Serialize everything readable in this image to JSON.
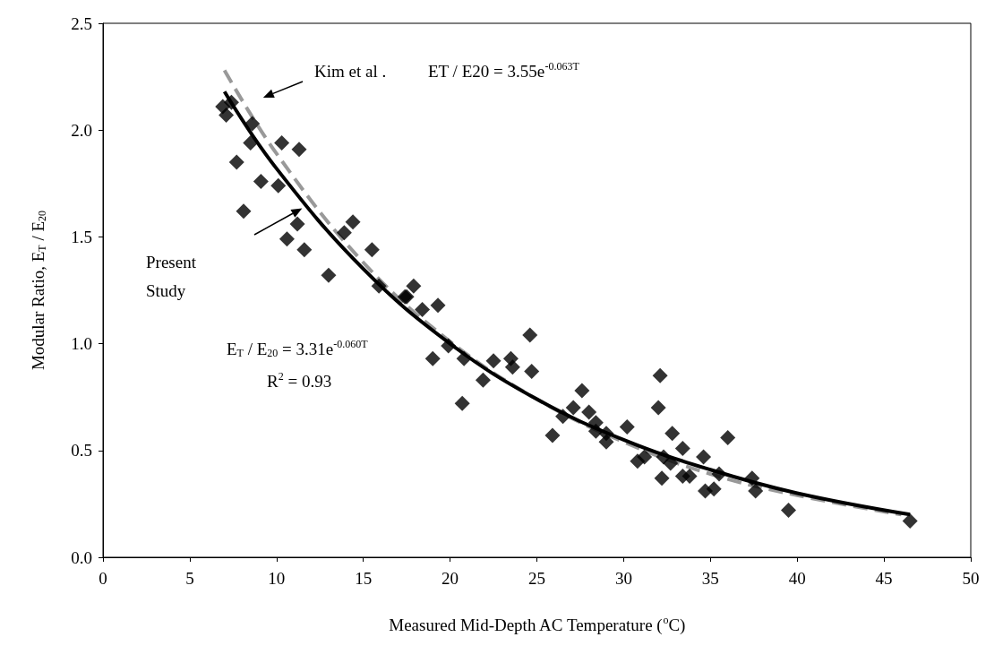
{
  "chart_data": {
    "type": "scatter",
    "xlabel": "Measured Mid-Depth AC Temperature ($^{o}$C)",
    "ylabel": "Modular Ratio, E$_{T}$ / E$_{20}$",
    "xlim": [
      0,
      50
    ],
    "xticks": [
      0,
      5,
      10,
      15,
      20,
      25,
      30,
      35,
      40,
      45,
      50
    ],
    "ylim": [
      0,
      2.5
    ],
    "yticks": [
      {
        "value": 0,
        "label": "0.0"
      },
      {
        "value": 0.5,
        "label": "0.5"
      },
      {
        "value": 1,
        "label": "1.0"
      },
      {
        "value": 1.5,
        "label": "1.5"
      },
      {
        "value": 2,
        "label": "2.0"
      },
      {
        "value": 2.5,
        "label": "2.5"
      }
    ],
    "marker": "diamond",
    "series": [
      {
        "color": "#000000",
        "x": [
          6.9,
          7.1,
          7.4,
          8.6,
          8.5,
          7.7,
          10.3,
          11.3,
          9.1,
          10.1,
          8.1,
          11.2,
          10.6,
          11.6,
          13.0,
          14.4,
          13.9,
          15.5,
          15.9,
          17.5,
          17.9,
          17.4,
          18.4,
          19.3,
          19.9,
          19.0,
          20.8,
          20.7,
          21.9,
          22.5,
          23.5,
          23.6,
          24.6,
          24.7,
          25.9,
          26.5,
          27.1,
          27.6,
          28.0,
          28.4,
          28.4,
          29.0,
          29.0,
          30.2,
          30.8,
          31.2,
          32.1,
          32.0,
          32.3,
          32.2,
          32.8,
          32.7,
          33.4,
          33.4,
          33.8,
          34.6,
          34.7,
          35.2,
          36.0,
          35.5,
          37.4,
          37.6,
          39.5,
          46.5
        ],
        "values": [
          2.11,
          2.07,
          2.13,
          2.03,
          1.94,
          1.85,
          1.94,
          1.91,
          1.76,
          1.74,
          1.62,
          1.56,
          1.49,
          1.44,
          1.32,
          1.57,
          1.52,
          1.44,
          1.27,
          1.22,
          1.27,
          1.22,
          1.16,
          1.18,
          0.99,
          0.93,
          0.93,
          0.72,
          0.83,
          0.92,
          0.93,
          0.89,
          1.04,
          0.87,
          0.57,
          0.66,
          0.7,
          0.78,
          0.68,
          0.63,
          0.59,
          0.54,
          0.58,
          0.61,
          0.45,
          0.47,
          0.85,
          0.7,
          0.47,
          0.37,
          0.58,
          0.44,
          0.51,
          0.38,
          0.38,
          0.47,
          0.31,
          0.32,
          0.56,
          0.39,
          0.37,
          0.31,
          0.22,
          0.17
        ]
      },
      {
        "type": "line",
        "color": "#000000",
        "line_style": "solid",
        "marker": "none",
        "x": [
          7,
          10,
          15,
          20,
          25,
          30,
          35,
          40,
          46.5
        ],
        "values": [
          2.18,
          1.82,
          1.35,
          1.0,
          0.74,
          0.55,
          0.41,
          0.3,
          0.2
        ]
      },
      {
        "type": "line",
        "color": "#999999",
        "line_style": "dashed",
        "marker": "none",
        "x": [
          7,
          10,
          15,
          20,
          25,
          30,
          35,
          40,
          46
        ],
        "values": [
          2.28,
          1.89,
          1.38,
          1.01,
          0.74,
          0.54,
          0.39,
          0.29,
          0.2
        ]
      }
    ],
    "annotations": [
      "Kim et al .",
      "Present Study",
      "ET / E20 = 3.55e$^{-0.063T}$",
      "E$_{T}$ / E$_{20}$ = 3.31e$^{-0.060T}$",
      "R$^{2}$ = 0.93"
    ]
  }
}
